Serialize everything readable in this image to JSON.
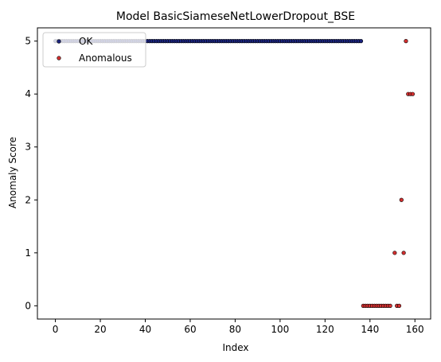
{
  "chart_data": {
    "type": "scatter",
    "title": "Model BasicSiameseNetLowerDropout_BSE",
    "xlabel": "Index",
    "ylabel": "Anomaly Score",
    "xlim": [
      -8.0,
      167.0
    ],
    "ylim": [
      -0.25,
      5.25
    ],
    "xticks": [
      0,
      20,
      40,
      60,
      80,
      100,
      120,
      140,
      160
    ],
    "yticks": [
      0,
      1,
      2,
      3,
      4,
      5
    ],
    "grid": false,
    "legend_position": "upper left",
    "series": [
      {
        "name": "OK",
        "color": "#1a237e",
        "x_start": 0,
        "x_end": 136,
        "y": 5
      },
      {
        "name": "Anomalous",
        "color": "#d32f2f",
        "points": [
          [
            137,
            0
          ],
          [
            138,
            0
          ],
          [
            139,
            0
          ],
          [
            140,
            0
          ],
          [
            141,
            0
          ],
          [
            142,
            0
          ],
          [
            143,
            0
          ],
          [
            144,
            0
          ],
          [
            145,
            0
          ],
          [
            146,
            0
          ],
          [
            147,
            0
          ],
          [
            148,
            0
          ],
          [
            149,
            0
          ],
          [
            151,
            1
          ],
          [
            152,
            0
          ],
          [
            153,
            0
          ],
          [
            154,
            2
          ],
          [
            155,
            1
          ],
          [
            156,
            5
          ],
          [
            157,
            4
          ],
          [
            158,
            4
          ],
          [
            159,
            4
          ]
        ]
      }
    ]
  }
}
